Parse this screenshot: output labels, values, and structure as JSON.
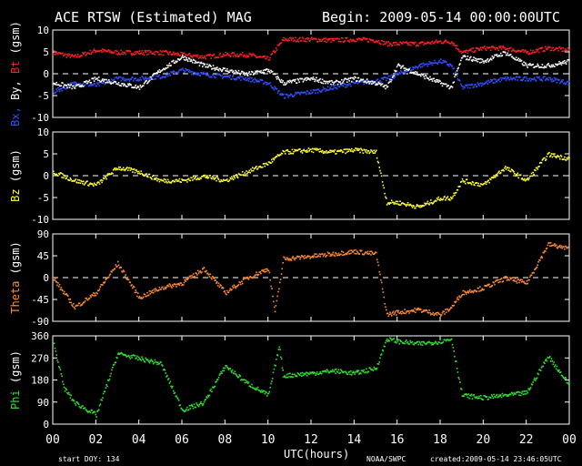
{
  "header": {
    "title": "ACE RTSW (Estimated) MAG",
    "begin": "Begin: 2009-05-14 00:00:00UTC"
  },
  "footer": {
    "start_doy": "start DOY:  134",
    "xaxis_label": "UTC(hours)",
    "source": "NOAA/SWPC",
    "created": "created:2009-05-14 23:46:05UTC"
  },
  "colors": {
    "background": "#000000",
    "frame": "#ffffff",
    "bt": "#ff2020",
    "bx": "#3050ff",
    "by": "#ffffff",
    "bz": "#ffff30",
    "theta": "#ff8c30",
    "phi": "#30e030"
  },
  "chart_data": [
    {
      "type": "scatter",
      "panel": "mag",
      "ylabel_parts": [
        {
          "text": "Bx,",
          "color": "#3050ff"
        },
        {
          "text": " By,",
          "color": "#ffffff"
        },
        {
          "text": " Bt",
          "color": "#ff2020"
        },
        {
          "text": " (gsm)",
          "color": "#ffffff"
        }
      ],
      "ylim": [
        -10,
        10
      ],
      "yticks": [
        "10",
        "5",
        "0",
        "-5",
        "-10"
      ],
      "yticks_values": [
        10,
        5,
        0,
        -5,
        -10
      ],
      "zero_line": true,
      "series": [
        {
          "key": "bt",
          "values_hint": "Bt total field",
          "points": [
            [
              0,
              5
            ],
            [
              1,
              4
            ],
            [
              2,
              5.5
            ],
            [
              3,
              5
            ],
            [
              4,
              5
            ],
            [
              5,
              5
            ],
            [
              6,
              4.5
            ],
            [
              7,
              4
            ],
            [
              8,
              4.5
            ],
            [
              9,
              4.5
            ],
            [
              10,
              3.5
            ],
            [
              10.7,
              8
            ],
            [
              12,
              8
            ],
            [
              13,
              7.8
            ],
            [
              14,
              8
            ],
            [
              15,
              7.8
            ],
            [
              15.5,
              7
            ],
            [
              16,
              7
            ],
            [
              17,
              7
            ],
            [
              18,
              7.5
            ],
            [
              18.5,
              7.5
            ],
            [
              19,
              5
            ],
            [
              20,
              6
            ],
            [
              21,
              6
            ],
            [
              22,
              5
            ],
            [
              23,
              6
            ],
            [
              24,
              5.5
            ]
          ]
        },
        {
          "key": "bx",
          "values_hint": "Bx component",
          "points": [
            [
              0,
              -4
            ],
            [
              1,
              -2
            ],
            [
              2,
              -2.5
            ],
            [
              3,
              -1
            ],
            [
              4,
              -1
            ],
            [
              5,
              -0.5
            ],
            [
              6,
              1
            ],
            [
              7,
              0
            ],
            [
              8,
              -0.5
            ],
            [
              9,
              -1
            ],
            [
              10,
              -2
            ],
            [
              10.7,
              -5
            ],
            [
              12,
              -4
            ],
            [
              13,
              -3
            ],
            [
              14,
              -2
            ],
            [
              15,
              -1.5
            ],
            [
              15.5,
              -1
            ],
            [
              16,
              0
            ],
            [
              17,
              2
            ],
            [
              18,
              3
            ],
            [
              18.5,
              2
            ],
            [
              19,
              -3
            ],
            [
              20,
              -2
            ],
            [
              21,
              -1
            ],
            [
              22,
              -1
            ],
            [
              23,
              -1
            ],
            [
              24,
              -2
            ]
          ]
        },
        {
          "key": "by",
          "values_hint": "By component",
          "points": [
            [
              0,
              -2
            ],
            [
              1,
              -3
            ],
            [
              2,
              -1
            ],
            [
              3,
              -2
            ],
            [
              4,
              -3
            ],
            [
              5,
              1
            ],
            [
              6,
              4
            ],
            [
              7,
              2
            ],
            [
              8,
              1
            ],
            [
              9,
              0
            ],
            [
              10,
              1
            ],
            [
              10.7,
              -2
            ],
            [
              12,
              -1
            ],
            [
              13,
              -2
            ],
            [
              14,
              -1
            ],
            [
              15,
              -2
            ],
            [
              15.5,
              -3
            ],
            [
              16,
              2
            ],
            [
              17,
              0
            ],
            [
              18,
              -2
            ],
            [
              18.5,
              -3
            ],
            [
              19,
              4
            ],
            [
              20,
              3
            ],
            [
              21,
              5
            ],
            [
              22,
              2
            ],
            [
              23,
              2
            ],
            [
              24,
              3
            ]
          ]
        }
      ]
    },
    {
      "type": "scatter",
      "panel": "bz",
      "ylabel_parts": [
        {
          "text": "Bz",
          "color": "#ffff30"
        },
        {
          "text": "  (gsm)",
          "color": "#ffffff"
        }
      ],
      "ylim": [
        -10,
        10
      ],
      "yticks": [
        "10",
        "5",
        "0",
        "-5",
        "-10"
      ],
      "yticks_values": [
        10,
        5,
        0,
        -5,
        -10
      ],
      "zero_line": true,
      "series": [
        {
          "key": "bz",
          "points": [
            [
              0,
              1
            ],
            [
              1,
              -1
            ],
            [
              2,
              -2
            ],
            [
              3,
              2
            ],
            [
              4,
              1
            ],
            [
              5,
              -1
            ],
            [
              6,
              -1
            ],
            [
              7,
              0
            ],
            [
              8,
              -1
            ],
            [
              9,
              1
            ],
            [
              10,
              3
            ],
            [
              10.7,
              5.5
            ],
            [
              12,
              6
            ],
            [
              13,
              5.5
            ],
            [
              14,
              6
            ],
            [
              15,
              5.5
            ],
            [
              15.5,
              -6
            ],
            [
              16,
              -6
            ],
            [
              17,
              -7
            ],
            [
              18,
              -5
            ],
            [
              18.5,
              -5
            ],
            [
              19,
              -1
            ],
            [
              20,
              -2
            ],
            [
              21,
              2
            ],
            [
              22,
              -1
            ],
            [
              23,
              5
            ],
            [
              24,
              4
            ]
          ]
        }
      ]
    },
    {
      "type": "scatter",
      "panel": "theta",
      "ylabel_parts": [
        {
          "text": "Theta",
          "color": "#ff8c30"
        },
        {
          "text": "  (gsm)",
          "color": "#ffffff"
        }
      ],
      "ylim": [
        -90,
        90
      ],
      "yticks": [
        "90",
        "45",
        "0",
        "-45",
        "-90"
      ],
      "yticks_values": [
        90,
        45,
        0,
        -45,
        -90
      ],
      "zero_line": true,
      "series": [
        {
          "key": "theta",
          "points": [
            [
              0,
              0
            ],
            [
              1,
              -60
            ],
            [
              2,
              -30
            ],
            [
              3,
              30
            ],
            [
              4,
              -40
            ],
            [
              5,
              -20
            ],
            [
              6,
              -10
            ],
            [
              7,
              20
            ],
            [
              8,
              -30
            ],
            [
              9,
              0
            ],
            [
              10,
              20
            ],
            [
              10.3,
              -70
            ],
            [
              10.7,
              40
            ],
            [
              12,
              45
            ],
            [
              13,
              50
            ],
            [
              14,
              55
            ],
            [
              15,
              50
            ],
            [
              15.5,
              -75
            ],
            [
              16,
              -70
            ],
            [
              17,
              -65
            ],
            [
              18,
              -75
            ],
            [
              18.5,
              -60
            ],
            [
              19,
              -30
            ],
            [
              20,
              -20
            ],
            [
              21,
              0
            ],
            [
              22,
              -10
            ],
            [
              23,
              70
            ],
            [
              24,
              60
            ]
          ]
        }
      ]
    },
    {
      "type": "scatter",
      "panel": "phi",
      "ylabel_parts": [
        {
          "text": "Phi",
          "color": "#30e030"
        },
        {
          "text": "  (gsm)",
          "color": "#ffffff"
        }
      ],
      "ylim": [
        0,
        360
      ],
      "yticks": [
        "360",
        "270",
        "180",
        "90",
        "0"
      ],
      "yticks_values": [
        360,
        270,
        180,
        90,
        0
      ],
      "zero_line": false,
      "series": [
        {
          "key": "phi",
          "points": [
            [
              0,
              340
            ],
            [
              0.5,
              150
            ],
            [
              1,
              90
            ],
            [
              2,
              40
            ],
            [
              3,
              290
            ],
            [
              4,
              270
            ],
            [
              5,
              250
            ],
            [
              6,
              60
            ],
            [
              7,
              90
            ],
            [
              8,
              240
            ],
            [
              9,
              170
            ],
            [
              10,
              120
            ],
            [
              10.5,
              320
            ],
            [
              10.7,
              200
            ],
            [
              12,
              210
            ],
            [
              13,
              220
            ],
            [
              14,
              210
            ],
            [
              15,
              230
            ],
            [
              15.5,
              350
            ],
            [
              16,
              340
            ],
            [
              17,
              330
            ],
            [
              18,
              340
            ],
            [
              18.5,
              350
            ],
            [
              19,
              120
            ],
            [
              20,
              110
            ],
            [
              21,
              120
            ],
            [
              22,
              130
            ],
            [
              23,
              280
            ],
            [
              24,
              160
            ]
          ]
        }
      ]
    }
  ],
  "xaxis": {
    "ticks": [
      "00",
      "02",
      "04",
      "06",
      "08",
      "10",
      "12",
      "14",
      "16",
      "18",
      "20",
      "22",
      "00"
    ],
    "tick_values": [
      0,
      2,
      4,
      6,
      8,
      10,
      12,
      14,
      16,
      18,
      20,
      22,
      24
    ],
    "xlim": [
      0,
      24
    ]
  }
}
